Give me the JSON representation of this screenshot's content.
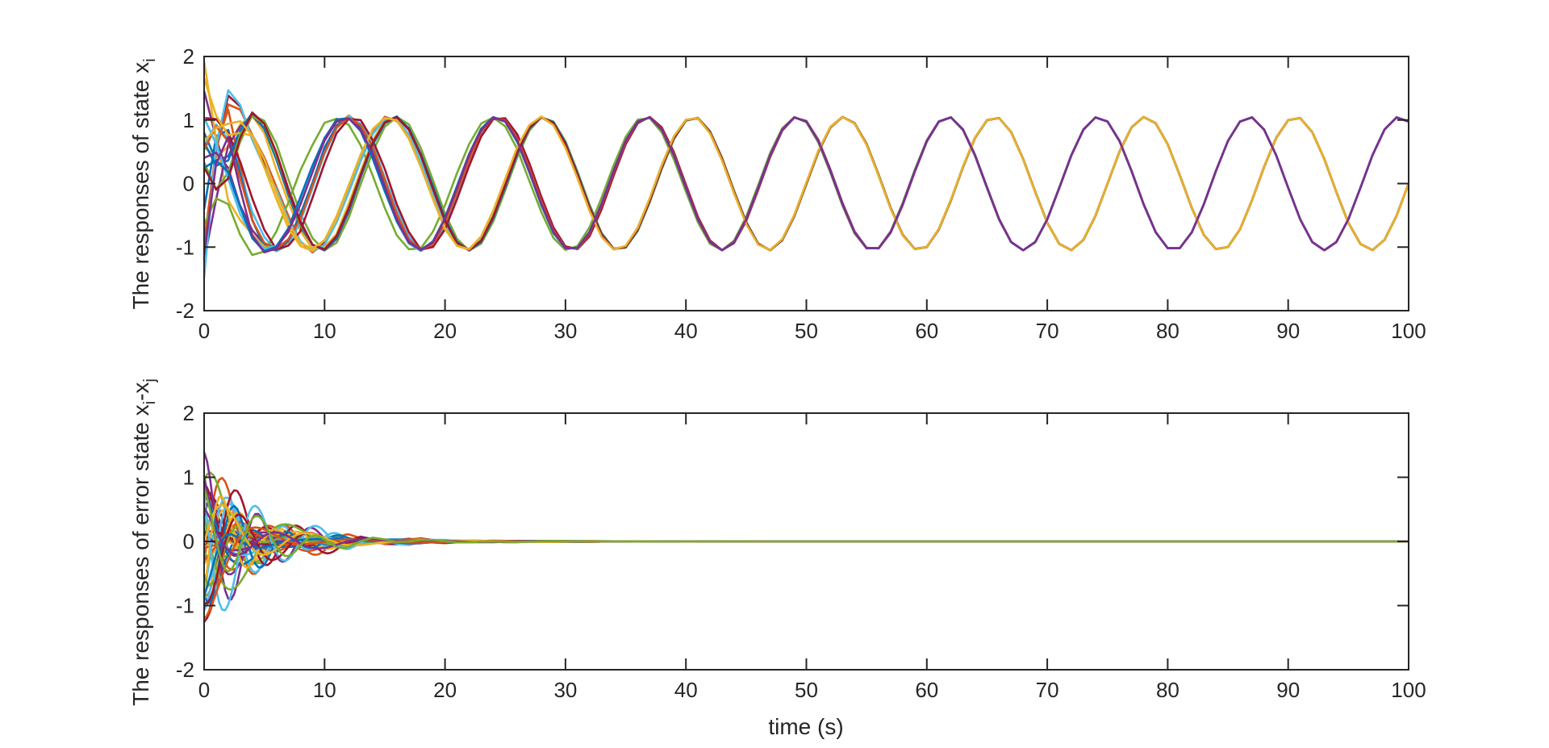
{
  "chart_data": [
    {
      "type": "line",
      "title": "",
      "xlabel": "",
      "ylabel": "The responses of state x",
      "ylabel_subscript": "i",
      "xlim": [
        0,
        100
      ],
      "ylim": [
        -2,
        2
      ],
      "x_ticks": [
        "0",
        "10",
        "20",
        "30",
        "40",
        "50",
        "60",
        "70",
        "80",
        "90",
        "100"
      ],
      "y_ticks": [
        "-2",
        "-1",
        "0",
        "1",
        "2"
      ],
      "grid": false,
      "legend": "none",
      "series_count": 24,
      "series_groups": [
        {
          "phase_group": "A",
          "final_amplitude": 1.05,
          "period_s": 12.5,
          "color_main": "#e8b22a"
        },
        {
          "phase_group": "B",
          "final_amplitude": 1.05,
          "period_s": 12.5,
          "color_main": "#7e2f8e"
        }
      ],
      "initial_value_range": [
        -1.6,
        2.0
      ]
    },
    {
      "type": "line",
      "title": "",
      "xlabel": "time (s)",
      "ylabel": "The responses of error state x",
      "ylabel_subscript_1": "i",
      "ylabel_sep": "-x",
      "ylabel_subscript_2": "j",
      "xlim": [
        0,
        100
      ],
      "ylim": [
        -2,
        2
      ],
      "x_ticks": [
        "0",
        "10",
        "20",
        "30",
        "40",
        "50",
        "60",
        "70",
        "80",
        "90",
        "100"
      ],
      "y_ticks": [
        "-2",
        "-1",
        "0",
        "1",
        "2"
      ],
      "grid": false,
      "legend": "none",
      "series_count": 40,
      "initial_value_range": [
        -1.5,
        1.5
      ],
      "settling_time_s": 20,
      "final_value": 0
    }
  ],
  "colors": [
    "#0072bd",
    "#d95319",
    "#edb120",
    "#7e2f8e",
    "#77ac30",
    "#4dbeee",
    "#a2142f"
  ]
}
